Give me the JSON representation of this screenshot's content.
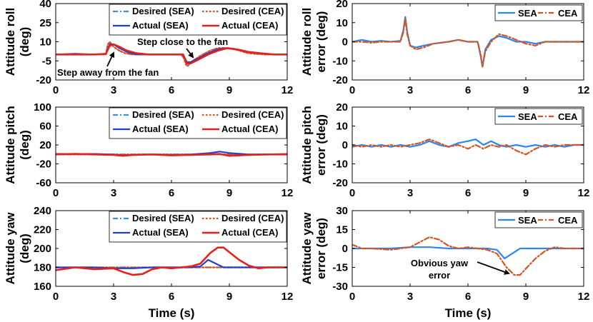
{
  "colors": {
    "sea_desired": "#3d8fe6",
    "sea_actual": "#1f3fd1",
    "cea_desired": "#d9531e",
    "cea_actual": "#e8201a",
    "sea_error": "#2a86f2",
    "cea_error": "#d9531e"
  },
  "shared_xlabel": "Time (s)",
  "chart_data": [
    {
      "id": "roll",
      "type": "line",
      "ylabel": [
        "Attitude roll",
        "(deg)"
      ],
      "xlim": [
        0,
        12
      ],
      "xticks": [
        "0",
        "3",
        "6",
        "9",
        "12"
      ],
      "ylim": [
        -20,
        40
      ],
      "yticks": [
        "-20",
        "-5",
        "10",
        "25",
        "40"
      ],
      "legend": [
        "Desired (SEA)",
        "Desired (CEA)",
        "Actual (SEA)",
        "Actual (CEA)"
      ],
      "annotations": [
        "Step away from the fan",
        "Step close to the fan"
      ],
      "series": [
        {
          "name": "Desired (SEA)",
          "x": [
            0,
            2.6,
            2.7,
            2.8,
            3.0,
            3.3,
            3.6,
            4.0,
            4.6,
            5.2,
            6.0,
            6.5,
            6.65,
            6.75,
            6.85,
            7.0,
            7.5,
            8.0,
            8.4,
            8.8,
            9.3,
            10.0,
            10.8,
            12
          ],
          "y": [
            0,
            0,
            8,
            10,
            6,
            3,
            1,
            0,
            0,
            0,
            0,
            0,
            -3,
            -8,
            -9,
            -6,
            -1,
            3,
            5,
            5,
            4,
            1,
            0,
            0
          ]
        },
        {
          "name": "Desired (CEA)",
          "x": [
            0,
            2.6,
            2.7,
            2.8,
            3.0,
            3.3,
            3.6,
            4.0,
            4.6,
            5.2,
            6.0,
            6.5,
            6.65,
            6.75,
            6.85,
            7.0,
            7.5,
            8.0,
            8.4,
            8.8,
            9.3,
            10.0,
            10.8,
            12
          ],
          "y": [
            0,
            0,
            8,
            10,
            6,
            3,
            1,
            0,
            0,
            0,
            0,
            0,
            -3,
            -8,
            -9,
            -6,
            -1,
            3,
            5,
            5,
            4,
            1,
            0,
            0
          ]
        },
        {
          "name": "Actual (SEA)",
          "x": [
            0,
            1.0,
            2.0,
            2.6,
            2.8,
            3.0,
            3.3,
            3.7,
            4.2,
            4.8,
            5.5,
            6.0,
            6.6,
            6.8,
            7.0,
            7.4,
            7.9,
            8.4,
            8.9,
            9.4,
            10.0,
            10.6,
            11.3,
            12
          ],
          "y": [
            0,
            0.5,
            0,
            0.5,
            8,
            8,
            5,
            2,
            0,
            0,
            0,
            0,
            0,
            -6,
            -6,
            -3,
            1,
            4,
            5,
            4,
            2,
            1,
            0,
            0
          ]
        },
        {
          "name": "Actual (CEA)",
          "x": [
            0,
            1.0,
            2.0,
            2.6,
            2.8,
            3.0,
            3.3,
            3.7,
            4.2,
            4.8,
            5.5,
            6.0,
            6.6,
            6.8,
            7.0,
            7.4,
            7.9,
            8.4,
            8.9,
            9.4,
            10.0,
            10.6,
            11.3,
            12
          ],
          "y": [
            0,
            0,
            0,
            0.5,
            7,
            8,
            6,
            3,
            1,
            0,
            0,
            0,
            0,
            -7,
            -7,
            -4,
            0,
            3,
            5,
            4,
            2,
            1,
            0,
            0
          ]
        }
      ]
    },
    {
      "id": "roll_err",
      "type": "line",
      "ylabel": [
        "Attitude roll",
        "error (deg)"
      ],
      "xlim": [
        0,
        12
      ],
      "xticks": [
        "0",
        "3",
        "6",
        "9",
        "12"
      ],
      "ylim": [
        -20,
        20
      ],
      "yticks": [
        "-20",
        "-10",
        "0",
        "10",
        "20"
      ],
      "legend": [
        "SEA",
        "CEA"
      ],
      "series": [
        {
          "name": "SEA",
          "x": [
            0,
            0.5,
            1.0,
            1.5,
            2.0,
            2.5,
            2.65,
            2.75,
            2.85,
            3.0,
            3.3,
            3.7,
            4.2,
            5.0,
            5.5,
            6.0,
            6.5,
            6.65,
            6.75,
            6.9,
            7.2,
            7.6,
            8.0,
            8.5,
            9.0,
            9.5,
            10.0,
            11.0,
            12
          ],
          "y": [
            0,
            1,
            0,
            0.5,
            0,
            0.5,
            6,
            13,
            5,
            -2,
            -3,
            -2,
            -1,
            0,
            1,
            0,
            0,
            -7,
            -13,
            -4,
            1,
            3,
            2,
            0,
            0,
            -1,
            0,
            0,
            0
          ]
        },
        {
          "name": "CEA",
          "x": [
            0,
            0.5,
            1.0,
            1.5,
            2.0,
            2.5,
            2.65,
            2.75,
            2.85,
            3.0,
            3.3,
            3.7,
            4.2,
            5.0,
            5.5,
            6.0,
            6.5,
            6.65,
            6.75,
            6.9,
            7.2,
            7.6,
            8.0,
            8.5,
            9.0,
            9.5,
            10.0,
            11.0,
            12
          ],
          "y": [
            0,
            0,
            -0.5,
            0,
            0,
            0,
            5,
            12,
            4,
            -2,
            -4,
            -3,
            -1,
            0,
            1,
            0,
            0,
            -6,
            -13,
            -5,
            0,
            4,
            3,
            1,
            -1,
            -2,
            0,
            0,
            0
          ]
        }
      ]
    },
    {
      "id": "pitch",
      "type": "line",
      "ylabel": [
        "Attitude pitch",
        "(deg)"
      ],
      "xlim": [
        0,
        12
      ],
      "xticks": [
        "0",
        "3",
        "6",
        "9",
        "12"
      ],
      "ylim": [
        -60,
        100
      ],
      "yticks": [
        "-60",
        "-20",
        "20",
        "60",
        "100"
      ],
      "legend": [
        "Desired (SEA)",
        "Desired (CEA)",
        "Actual (SEA)",
        "Actual (CEA)"
      ],
      "series": [
        {
          "name": "Desired (SEA)",
          "x": [
            0,
            1,
            2,
            3,
            4,
            5,
            6,
            7,
            8,
            9,
            10,
            11,
            12
          ],
          "y": [
            0,
            0,
            0,
            0,
            0,
            0,
            0,
            0,
            0,
            0,
            0,
            0,
            0
          ]
        },
        {
          "name": "Desired (CEA)",
          "x": [
            0,
            1,
            2,
            3,
            4,
            5,
            6,
            7,
            8,
            9,
            10,
            11,
            12
          ],
          "y": [
            0,
            0,
            0,
            0,
            0,
            0,
            0,
            0,
            0,
            0,
            0,
            0,
            0
          ]
        },
        {
          "name": "Actual (SEA)",
          "x": [
            0,
            1,
            2,
            3,
            3.5,
            4,
            5,
            6,
            7,
            8,
            8.5,
            9,
            10,
            11,
            12
          ],
          "y": [
            1,
            1,
            1,
            0,
            -2,
            -1,
            0,
            -1,
            0,
            3,
            6,
            3,
            0,
            0,
            1
          ]
        },
        {
          "name": "Actual (CEA)",
          "x": [
            0,
            1,
            2,
            3,
            3.5,
            4,
            5,
            6,
            7,
            8,
            8.5,
            9,
            10,
            11,
            12
          ],
          "y": [
            0,
            1,
            0,
            -1,
            -3,
            -1,
            0,
            -2,
            -1,
            0,
            1,
            -3,
            -1,
            0,
            0
          ]
        }
      ]
    },
    {
      "id": "pitch_err",
      "type": "line",
      "ylabel": [
        "Attitude pitch",
        "error (deg)"
      ],
      "xlim": [
        0,
        12
      ],
      "xticks": [
        "0",
        "3",
        "6",
        "9",
        "12"
      ],
      "ylim": [
        -20,
        20
      ],
      "yticks": [
        "-20",
        "-10",
        "0",
        "10",
        "20"
      ],
      "legend": [
        "SEA",
        "CEA"
      ],
      "series": [
        {
          "name": "SEA",
          "x": [
            0,
            0.5,
            1.0,
            1.5,
            2.0,
            2.5,
            3.0,
            3.5,
            4.0,
            4.5,
            5.0,
            5.5,
            6.0,
            6.4,
            6.8,
            7.2,
            7.6,
            8.0,
            8.5,
            9.0,
            9.5,
            10.0,
            10.5,
            11.0,
            11.5,
            12
          ],
          "y": [
            -1,
            0,
            -1,
            0,
            -1,
            0,
            -1,
            0,
            2,
            0,
            -1,
            1,
            2,
            3,
            0,
            2,
            0,
            -1,
            0,
            -1,
            0,
            -1,
            0,
            -1,
            0,
            0
          ]
        },
        {
          "name": "CEA",
          "x": [
            0,
            0.5,
            1.0,
            1.5,
            2.0,
            2.5,
            3.0,
            3.5,
            4.0,
            4.5,
            5.0,
            5.5,
            6.0,
            6.4,
            6.8,
            7.2,
            7.6,
            8.0,
            8.5,
            9.0,
            9.5,
            10.0,
            10.5,
            11.0,
            11.5,
            12
          ],
          "y": [
            0,
            -1,
            0,
            -1,
            0,
            -1,
            0,
            1,
            3,
            1,
            -1,
            0,
            -2,
            0,
            -2,
            0,
            -1,
            0,
            -3,
            -5,
            -2,
            0,
            -1,
            0,
            0,
            0
          ]
        }
      ]
    },
    {
      "id": "yaw",
      "type": "line",
      "ylabel": [
        "Attitude yaw",
        "(deg)"
      ],
      "xlim": [
        0,
        12
      ],
      "xticks": [
        "0",
        "3",
        "6",
        "9",
        "12"
      ],
      "ylim": [
        160,
        240
      ],
      "yticks": [
        "160",
        "180",
        "200",
        "220",
        "240"
      ],
      "legend": [
        "Desired (SEA)",
        "Desired (CEA)",
        "Actual (SEA)",
        "Actual (CEA)"
      ],
      "series": [
        {
          "name": "Desired (SEA)",
          "x": [
            0,
            2,
            4,
            6,
            8,
            10,
            12
          ],
          "y": [
            180,
            180,
            180,
            180,
            180,
            180,
            180
          ]
        },
        {
          "name": "Desired (CEA)",
          "x": [
            0,
            2,
            4,
            6,
            8,
            10,
            12
          ],
          "y": [
            180,
            180,
            180,
            180,
            180,
            180,
            180
          ]
        },
        {
          "name": "Actual (SEA)",
          "x": [
            0,
            1,
            2,
            3,
            4,
            5,
            6,
            7,
            7.5,
            7.9,
            8.3,
            8.7,
            9.2,
            10,
            11,
            12
          ],
          "y": [
            180,
            180,
            180,
            179,
            179,
            180,
            180,
            180,
            181,
            188,
            184,
            180,
            180,
            180,
            180,
            180
          ]
        },
        {
          "name": "Actual (CEA)",
          "x": [
            0,
            1,
            2,
            3,
            3.5,
            4.0,
            4.5,
            5.0,
            5.5,
            6.0,
            6.5,
            7.0,
            7.5,
            8.0,
            8.4,
            8.7,
            9.0,
            9.5,
            10.0,
            10.5,
            11,
            12
          ],
          "y": [
            177,
            180,
            178,
            179,
            175,
            172,
            173,
            178,
            180,
            179,
            180,
            181,
            184,
            195,
            201,
            201,
            196,
            188,
            182,
            179,
            180,
            180
          ]
        }
      ]
    },
    {
      "id": "yaw_err",
      "type": "line",
      "ylabel": [
        "Attitude yaw",
        "error (deg)"
      ],
      "xlim": [
        0,
        12
      ],
      "xticks": [
        "0",
        "3",
        "6",
        "9",
        "12"
      ],
      "ylim": [
        -30,
        30
      ],
      "yticks": [
        "-30",
        "-15",
        "0",
        "15",
        "30"
      ],
      "legend": [
        "SEA",
        "CEA"
      ],
      "annotations": [
        "Obvious yaw",
        "error"
      ],
      "series": [
        {
          "name": "SEA",
          "x": [
            0,
            1,
            2,
            3,
            4,
            5,
            6,
            7,
            7.5,
            7.9,
            8.3,
            8.7,
            9.2,
            10,
            11,
            12
          ],
          "y": [
            0,
            0,
            0,
            1,
            1,
            0,
            0,
            0,
            -1,
            -8,
            -4,
            0,
            0,
            0,
            0,
            0
          ]
        },
        {
          "name": "CEA",
          "x": [
            0,
            0.5,
            1,
            2,
            3,
            3.5,
            4.0,
            4.5,
            5.0,
            5.5,
            6.0,
            6.5,
            7.0,
            7.5,
            8.0,
            8.4,
            8.7,
            9.0,
            9.5,
            10.0,
            10.5,
            11,
            12
          ],
          "y": [
            3,
            0,
            0,
            -1,
            1,
            5,
            9,
            7,
            2,
            0,
            1,
            0,
            -1,
            -4,
            -15,
            -21,
            -21,
            -16,
            -8,
            -2,
            1,
            0,
            0
          ]
        }
      ]
    }
  ]
}
